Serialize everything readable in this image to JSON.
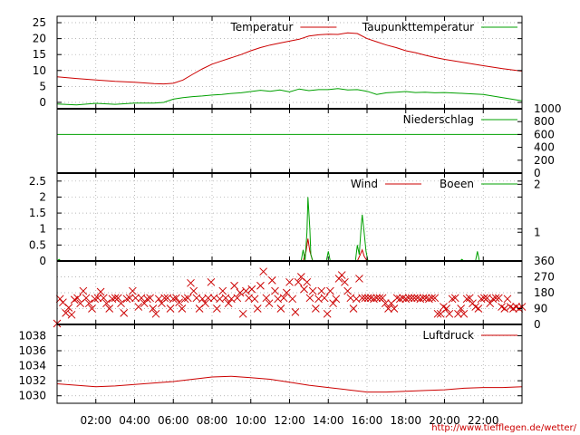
{
  "chart_data": [
    {
      "type": "line",
      "panel": "temperature",
      "ylim": [
        -2,
        27
      ],
      "yticks": [
        0,
        5,
        10,
        15,
        20,
        25
      ],
      "legend_position": "top-right",
      "series": [
        {
          "name": "Temperatur",
          "color": "#cc0000",
          "x": [
            0,
            1,
            2,
            3,
            4,
            5,
            5.5,
            6,
            6.5,
            7,
            7.5,
            8,
            8.5,
            9,
            9.5,
            10,
            10.5,
            11,
            11.5,
            12,
            12.5,
            13,
            13.5,
            14,
            14.5,
            15,
            15.5,
            16,
            16.5,
            17,
            17.5,
            18,
            18.5,
            19,
            19.5,
            20,
            21,
            22,
            23,
            24
          ],
          "y": [
            8,
            7.5,
            7,
            6.6,
            6.3,
            5.9,
            5.8,
            6,
            7,
            8.8,
            10.5,
            12,
            13,
            14,
            15,
            16.2,
            17.2,
            18,
            18.6,
            19.2,
            19.8,
            20.8,
            21.2,
            21.4,
            21.3,
            21.8,
            21.6,
            20,
            19,
            18,
            17.2,
            16.2,
            15.6,
            14.8,
            14.1,
            13.5,
            12.5,
            11.5,
            10.6,
            9.8
          ]
        },
        {
          "name": "Taupunkttemperatur",
          "color": "#00a000",
          "x": [
            0,
            1,
            2,
            3,
            4,
            5,
            5.5,
            6,
            6.5,
            7,
            7.5,
            8,
            8.5,
            9,
            9.5,
            10,
            10.5,
            11,
            11.5,
            12,
            12.5,
            13,
            13.5,
            14,
            14.5,
            15,
            15.5,
            16,
            16.5,
            17,
            17.5,
            18,
            18.5,
            19,
            19.5,
            20,
            21,
            22,
            23,
            24
          ],
          "y": [
            -0.5,
            -0.8,
            -0.3,
            -0.6,
            -0.2,
            -0.2,
            0,
            1,
            1.5,
            1.8,
            2,
            2.3,
            2.5,
            2.8,
            3,
            3.4,
            3.8,
            3.5,
            3.9,
            3.3,
            4.2,
            3.7,
            4,
            4,
            4.3,
            3.9,
            4,
            3.5,
            2.5,
            3,
            3.2,
            3.4,
            3.1,
            3.2,
            3,
            3.1,
            2.8,
            2.5,
            1.5,
            0.5
          ]
        }
      ]
    },
    {
      "type": "line",
      "panel": "precipitation",
      "ylim": [
        0,
        1000
      ],
      "yticks": [
        0,
        200,
        400,
        600,
        800,
        1000
      ],
      "yaxis_side": "right",
      "series": [
        {
          "name": "Niederschlag",
          "color": "#00a000",
          "x": [
            0,
            24
          ],
          "y": [
            600,
            600
          ]
        }
      ]
    },
    {
      "type": "line",
      "panel": "wind",
      "ylim": [
        0,
        2.75
      ],
      "yticks": [
        0,
        0.5,
        1,
        1.5,
        2,
        2.5
      ],
      "y2ticks": [
        {
          "label": "2",
          "value": 2.4
        },
        {
          "label": "1",
          "value": 0.9
        }
      ],
      "series": [
        {
          "name": "Wind",
          "color": "#cc0000",
          "x": [
            0,
            12.7,
            12.85,
            12.95,
            13.05,
            13.2,
            15.5,
            15.65,
            15.75,
            15.85,
            16.0,
            24
          ],
          "y": [
            0,
            0,
            0.3,
            0.7,
            0.3,
            0,
            0,
            0.2,
            0.35,
            0.15,
            0,
            0
          ]
        },
        {
          "name": "Boeen",
          "color": "#00a000",
          "x": [
            0,
            0.1,
            0.2,
            12.6,
            12.7,
            12.8,
            12.9,
            12.95,
            13.05,
            13.1,
            13.2,
            13.3,
            13.9,
            14.0,
            14.1,
            15.4,
            15.5,
            15.6,
            15.7,
            15.75,
            15.85,
            15.95,
            16.05,
            20.8,
            20.9,
            21.0,
            21.6,
            21.7,
            21.8,
            24
          ],
          "y": [
            0,
            0.05,
            0,
            0,
            0.35,
            0,
            0.9,
            2.0,
            1.0,
            0.2,
            0,
            0,
            0,
            0.3,
            0,
            0,
            0.5,
            0.2,
            1.1,
            1.45,
            0.9,
            0.3,
            0,
            0,
            0.05,
            0,
            0,
            0.3,
            0,
            0
          ]
        }
      ]
    },
    {
      "type": "scatter",
      "panel": "wind-direction",
      "ylim": [
        0,
        360
      ],
      "y2ticks": [
        0,
        90,
        180,
        270,
        360
      ],
      "yaxis_side": "right",
      "series": [
        {
          "name": "",
          "color": "#cc0000",
          "marker": "x",
          "x": [
            0.0,
            0.15,
            0.3,
            0.45,
            0.6,
            0.75,
            0.9,
            1.05,
            1.2,
            1.35,
            1.5,
            1.65,
            1.8,
            1.95,
            2.1,
            2.25,
            2.4,
            2.55,
            2.7,
            2.85,
            3.0,
            3.15,
            3.3,
            3.45,
            3.6,
            3.75,
            3.9,
            4.05,
            4.2,
            4.35,
            4.5,
            4.65,
            4.8,
            4.95,
            5.1,
            5.25,
            5.4,
            5.55,
            5.7,
            5.85,
            6.0,
            6.15,
            6.3,
            6.45,
            6.6,
            6.75,
            6.9,
            7.05,
            7.2,
            7.35,
            7.5,
            7.65,
            7.8,
            7.95,
            8.1,
            8.25,
            8.4,
            8.55,
            8.7,
            8.85,
            9.0,
            9.15,
            9.3,
            9.45,
            9.6,
            9.75,
            9.9,
            10.05,
            10.2,
            10.35,
            10.5,
            10.65,
            10.8,
            10.95,
            11.1,
            11.25,
            11.4,
            11.55,
            11.7,
            11.85,
            12.0,
            12.15,
            12.3,
            12.45,
            12.6,
            12.75,
            12.9,
            13.05,
            13.2,
            13.35,
            13.5,
            13.65,
            13.8,
            13.95,
            14.1,
            14.25,
            14.4,
            14.55,
            14.7,
            14.85,
            15.0,
            15.15,
            15.3,
            15.45,
            15.6,
            15.75,
            15.9,
            16.05,
            16.2,
            16.35,
            16.5,
            16.65,
            16.8,
            16.95,
            17.1,
            17.25,
            17.4,
            17.55,
            17.7,
            17.85,
            18.0,
            18.15,
            18.3,
            18.45,
            18.6,
            18.75,
            18.9,
            19.05,
            19.2,
            19.35,
            19.5,
            19.65,
            19.8,
            19.95,
            20.1,
            20.25,
            20.4,
            20.55,
            20.7,
            20.85,
            21.0,
            21.15,
            21.3,
            21.45,
            21.6,
            21.75,
            21.9,
            22.05,
            22.2,
            22.35,
            22.5,
            22.65,
            22.8,
            22.95,
            23.1,
            23.25,
            23.4,
            23.55,
            23.7,
            23.85,
            24.0
          ],
          "y": [
            5,
            145,
            125,
            65,
            95,
            55,
            140,
            150,
            120,
            190,
            150,
            120,
            90,
            145,
            150,
            185,
            150,
            120,
            90,
            145,
            150,
            150,
            120,
            65,
            145,
            150,
            190,
            150,
            100,
            150,
            120,
            145,
            150,
            90,
            60,
            145,
            120,
            150,
            150,
            90,
            145,
            150,
            125,
            90,
            145,
            150,
            235,
            190,
            150,
            90,
            145,
            120,
            150,
            240,
            150,
            90,
            145,
            190,
            150,
            120,
            145,
            220,
            150,
            180,
            60,
            190,
            150,
            200,
            145,
            90,
            220,
            300,
            150,
            120,
            250,
            190,
            145,
            90,
            150,
            180,
            240,
            145,
            70,
            240,
            270,
            200,
            240,
            150,
            190,
            90,
            145,
            190,
            150,
            60,
            190,
            120,
            145,
            260,
            280,
            240,
            190,
            150,
            90,
            145,
            260,
            150,
            150,
            150,
            150,
            145,
            150,
            150,
            150,
            120,
            90,
            120,
            90,
            150,
            145,
            150,
            145,
            150,
            150,
            150,
            150,
            145,
            150,
            150,
            145,
            150,
            150,
            60,
            60,
            100,
            90,
            60,
            145,
            150,
            60,
            90,
            60,
            145,
            150,
            120,
            100,
            90,
            145,
            150,
            150,
            120,
            145,
            150,
            150,
            100,
            90,
            145,
            100,
            90,
            100,
            90,
            100
          ]
        }
      ]
    },
    {
      "type": "line",
      "panel": "pressure",
      "ylim": [
        1029,
        1039.5
      ],
      "yticks": [
        1030,
        1032,
        1034,
        1036,
        1038
      ],
      "xticks": [
        "02:00",
        "04:00",
        "06:00",
        "08:00",
        "10:00",
        "12:00",
        "14:00",
        "16:00",
        "18:00",
        "20:00",
        "22:00"
      ],
      "legend_position": "top-right",
      "series": [
        {
          "name": "Luftdruck",
          "color": "#cc0000",
          "x": [
            0,
            1,
            2,
            3,
            4,
            5,
            6,
            7,
            8,
            9,
            10,
            11,
            12,
            13,
            14,
            15,
            16,
            17,
            18,
            19,
            20,
            21,
            22,
            23,
            24
          ],
          "y": [
            1031.6,
            1031.4,
            1031.2,
            1031.3,
            1031.5,
            1031.7,
            1031.9,
            1032.2,
            1032.5,
            1032.6,
            1032.4,
            1032.2,
            1031.8,
            1031.4,
            1031.1,
            1030.8,
            1030.5,
            1030.5,
            1030.6,
            1030.7,
            1030.8,
            1031.0,
            1031.1,
            1031.1,
            1031.2
          ]
        }
      ]
    }
  ],
  "footer": {
    "url": "http://www.tiefflegen.de/wetter/"
  }
}
